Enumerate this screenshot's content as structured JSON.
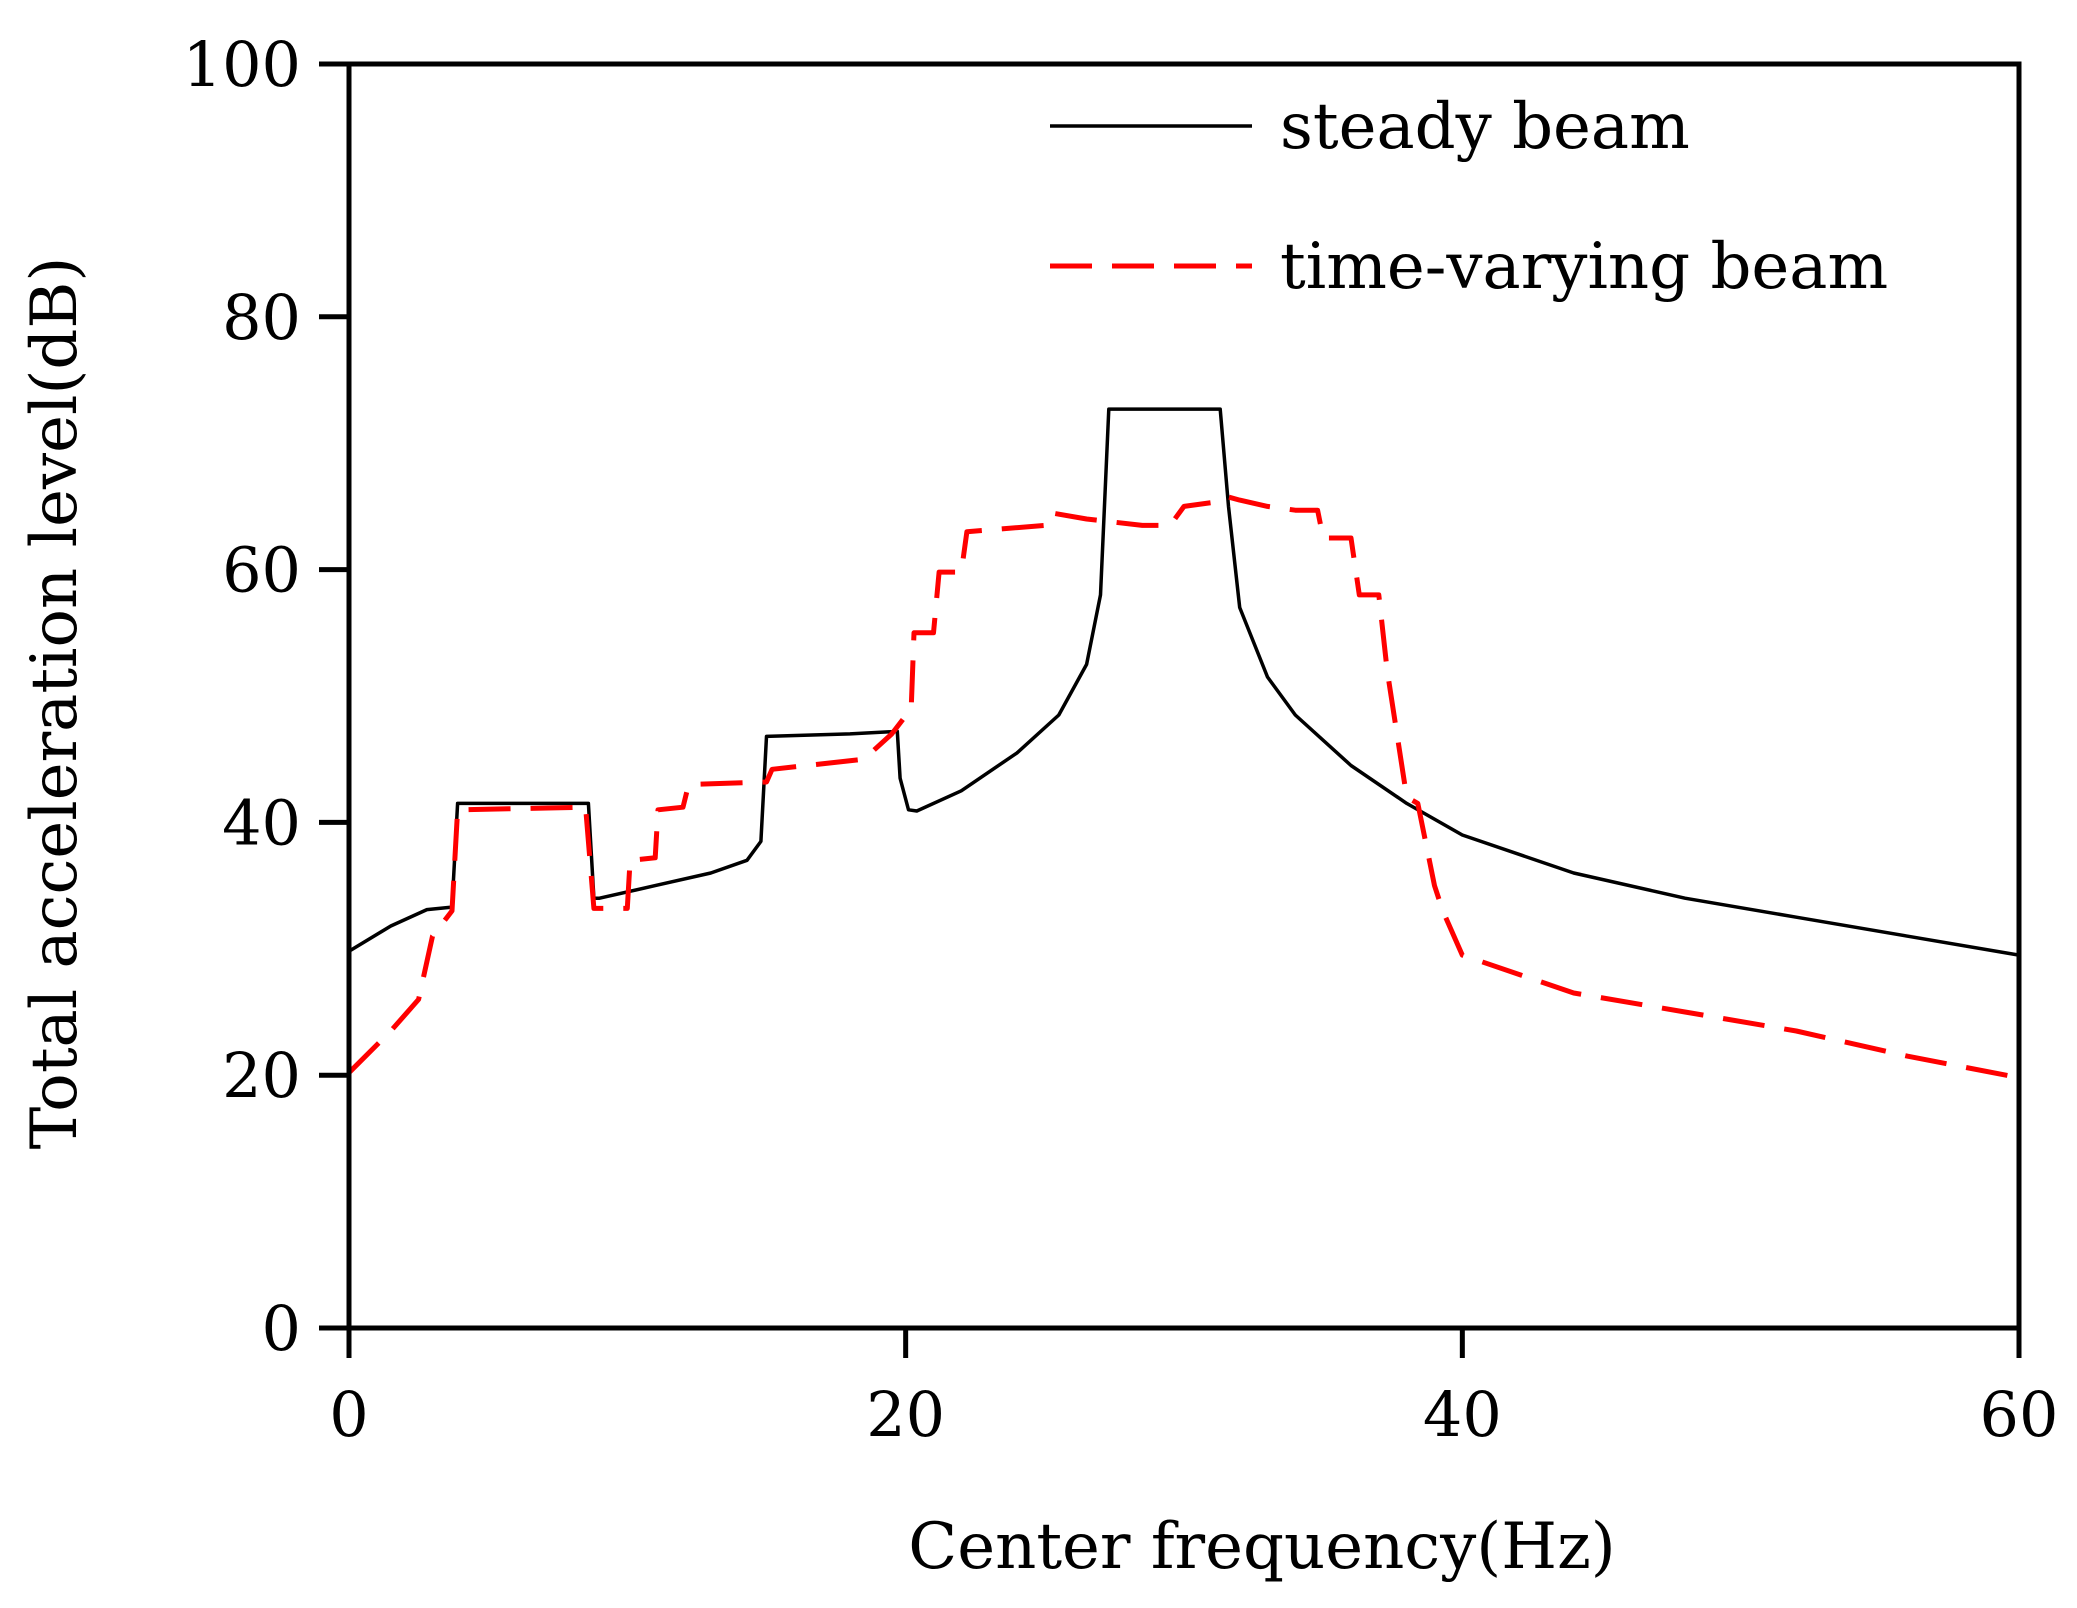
{
  "chart_data": {
    "type": "line",
    "title": "",
    "xlabel": "Center frequency(Hz)",
    "ylabel": "Total acceleration level(dB)",
    "xlim": [
      0,
      60
    ],
    "ylim": [
      0,
      100
    ],
    "grid": false,
    "legend_position": "top-right",
    "x_ticks": [
      {
        "value": 0,
        "label": "0"
      },
      {
        "value": 20,
        "label": "20"
      },
      {
        "value": 40,
        "label": "40"
      },
      {
        "value": 60,
        "label": "60"
      }
    ],
    "y_ticks": [
      {
        "value": 0,
        "label": "0"
      },
      {
        "value": 20,
        "label": "20"
      },
      {
        "value": 40,
        "label": "40"
      },
      {
        "value": 60,
        "label": "60"
      },
      {
        "value": 80,
        "label": "80"
      },
      {
        "value": 100,
        "label": "100"
      }
    ],
    "series": [
      {
        "name": "steady beam",
        "color": "#000000",
        "style": "solid",
        "x": [
          0,
          1.5,
          2.8,
          3.7,
          3.9,
          8.6,
          8.8,
          9.0,
          11,
          13,
          14.3,
          14.8,
          15.0,
          18,
          19.7,
          19.8,
          20.1,
          20.4,
          22,
          24,
          25.5,
          26.5,
          27.0,
          27.3,
          29,
          31.3,
          31.6,
          32.0,
          33,
          34,
          36,
          38,
          40,
          44,
          48,
          52,
          56,
          60
        ],
        "values": [
          29.8,
          31.8,
          33.1,
          33.3,
          41.5,
          41.5,
          34.0,
          34.0,
          35.0,
          36.0,
          37.0,
          38.5,
          46.8,
          47.0,
          47.2,
          43.5,
          41.0,
          40.9,
          42.5,
          45.5,
          48.5,
          52.5,
          58.0,
          72.7,
          72.7,
          72.7,
          65.0,
          57.0,
          51.5,
          48.5,
          44.5,
          41.5,
          39.0,
          36.0,
          34.0,
          32.5,
          31.0,
          29.5
        ]
      },
      {
        "name": "time-varying beam",
        "color": "#ff0000",
        "style": "dashed",
        "x": [
          0,
          1.5,
          2.5,
          3.0,
          3.7,
          3.9,
          8.5,
          8.8,
          10.0,
          10.1,
          11.0,
          11.1,
          12.0,
          12.2,
          15.0,
          15.2,
          18.5,
          19.5,
          20.2,
          20.3,
          21.0,
          21.2,
          22.0,
          22.2,
          25.0,
          25.2,
          26.5,
          28.5,
          29.5,
          30.0,
          31.0,
          31.5,
          32.0,
          33.0,
          34.0,
          34.8,
          35.0,
          36.0,
          36.3,
          37.0,
          37.3,
          38.0,
          38.4,
          39.0,
          39.3,
          40,
          44,
          48,
          52,
          56,
          60
        ],
        "values": [
          20.2,
          23.5,
          26.0,
          31.0,
          33.0,
          41.0,
          41.2,
          33.2,
          33.2,
          37.0,
          37.2,
          41.0,
          41.2,
          43.0,
          43.2,
          44.2,
          45.0,
          47.0,
          49.0,
          55.0,
          55.0,
          59.8,
          59.8,
          63.0,
          63.5,
          64.5,
          64.0,
          63.5,
          63.5,
          65.0,
          65.3,
          65.8,
          65.5,
          65.0,
          64.7,
          64.7,
          62.5,
          62.5,
          58.0,
          58.0,
          52.0,
          42.0,
          41.5,
          35.0,
          33.0,
          29.5,
          26.5,
          25.0,
          23.5,
          21.5,
          19.8
        ]
      }
    ]
  }
}
